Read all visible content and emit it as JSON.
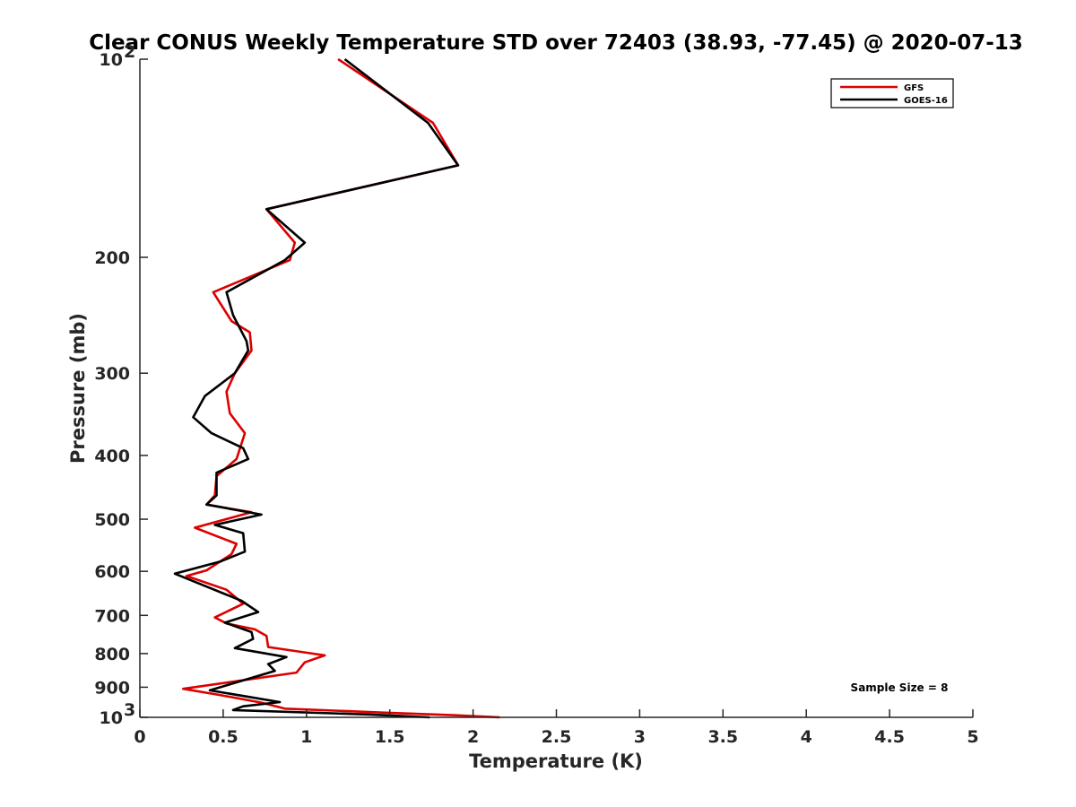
{
  "chart_data": {
    "type": "line",
    "title": "Clear CONUS Weekly Temperature STD over 72403 (38.93, -77.45) @ 2020-07-13",
    "xlabel": "Temperature (K)",
    "ylabel": "Pressure (mb)",
    "xlim": [
      0,
      5
    ],
    "ylim": [
      100,
      1000
    ],
    "y_scale": "log",
    "y_reversed": true,
    "xticks": [
      0,
      0.5,
      1,
      1.5,
      2,
      2.5,
      3,
      3.5,
      4,
      4.5,
      5
    ],
    "xtick_labels": [
      "0",
      "0.5",
      "1",
      "1.5",
      "2",
      "2.5",
      "3",
      "3.5",
      "4",
      "4.5",
      "5"
    ],
    "yticks": [
      100,
      200,
      300,
      400,
      500,
      600,
      700,
      800,
      900,
      1000
    ],
    "ytick_labels": [
      {
        "base": "10",
        "exp": "2"
      },
      {
        "base": "200",
        "exp": ""
      },
      {
        "base": "300",
        "exp": ""
      },
      {
        "base": "400",
        "exp": ""
      },
      {
        "base": "500",
        "exp": ""
      },
      {
        "base": "600",
        "exp": ""
      },
      {
        "base": "700",
        "exp": ""
      },
      {
        "base": "800",
        "exp": ""
      },
      {
        "base": "900",
        "exp": ""
      },
      {
        "base": "10",
        "exp": "3"
      }
    ],
    "grid": false,
    "legend_position": "top-right",
    "annotation": "Sample Size = 8",
    "series": [
      {
        "name": "GFS",
        "color": "#dd0000",
        "points": [
          [
            1.19,
            100
          ],
          [
            1.76,
            125
          ],
          [
            1.91,
            145
          ],
          [
            0.76,
            169
          ],
          [
            0.93,
            190
          ],
          [
            0.9,
            202
          ],
          [
            0.44,
            226
          ],
          [
            0.55,
            250
          ],
          [
            0.66,
            260
          ],
          [
            0.67,
            277
          ],
          [
            0.57,
            300
          ],
          [
            0.52,
            320
          ],
          [
            0.54,
            345
          ],
          [
            0.63,
            370
          ],
          [
            0.58,
            405
          ],
          [
            0.46,
            430
          ],
          [
            0.45,
            460
          ],
          [
            0.4,
            475
          ],
          [
            0.67,
            488
          ],
          [
            0.33,
            515
          ],
          [
            0.58,
            545
          ],
          [
            0.55,
            565
          ],
          [
            0.4,
            598
          ],
          [
            0.28,
            610
          ],
          [
            0.52,
            640
          ],
          [
            0.62,
            672
          ],
          [
            0.45,
            705
          ],
          [
            0.52,
            720
          ],
          [
            0.69,
            735
          ],
          [
            0.76,
            752
          ],
          [
            0.77,
            782
          ],
          [
            1.11,
            805
          ],
          [
            0.99,
            825
          ],
          [
            0.94,
            855
          ],
          [
            0.26,
            905
          ],
          [
            0.48,
            925
          ],
          [
            0.73,
            950
          ],
          [
            0.87,
            970
          ],
          [
            1.49,
            984
          ],
          [
            1.91,
            993
          ],
          [
            2.16,
            1000
          ]
        ]
      },
      {
        "name": "GOES-16",
        "color": "#000000",
        "points": [
          [
            1.23,
            100
          ],
          [
            1.73,
            125
          ],
          [
            1.91,
            145
          ],
          [
            0.76,
            169
          ],
          [
            0.99,
            190
          ],
          [
            0.87,
            202
          ],
          [
            0.52,
            226
          ],
          [
            0.56,
            245
          ],
          [
            0.64,
            268
          ],
          [
            0.65,
            277
          ],
          [
            0.57,
            300
          ],
          [
            0.39,
            325
          ],
          [
            0.32,
            350
          ],
          [
            0.43,
            370
          ],
          [
            0.62,
            390
          ],
          [
            0.65,
            405
          ],
          [
            0.46,
            425
          ],
          [
            0.46,
            460
          ],
          [
            0.4,
            475
          ],
          [
            0.73,
            492
          ],
          [
            0.45,
            510
          ],
          [
            0.62,
            525
          ],
          [
            0.63,
            560
          ],
          [
            0.48,
            580
          ],
          [
            0.21,
            605
          ],
          [
            0.61,
            665
          ],
          [
            0.71,
            692
          ],
          [
            0.51,
            718
          ],
          [
            0.67,
            742
          ],
          [
            0.68,
            760
          ],
          [
            0.57,
            785
          ],
          [
            0.88,
            810
          ],
          [
            0.77,
            830
          ],
          [
            0.81,
            850
          ],
          [
            0.42,
            910
          ],
          [
            0.84,
            948
          ],
          [
            0.62,
            962
          ],
          [
            0.56,
            975
          ],
          [
            1.37,
            990
          ],
          [
            1.74,
            1000
          ]
        ]
      }
    ]
  }
}
